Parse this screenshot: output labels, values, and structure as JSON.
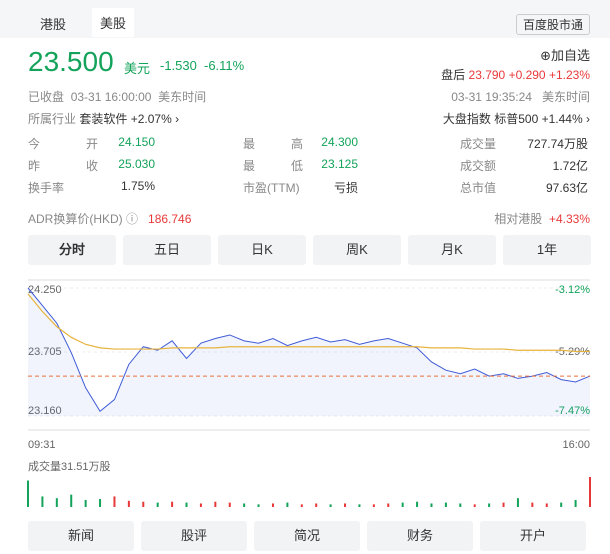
{
  "tabs": [
    "港股",
    "美股"
  ],
  "app_button": "百度股市通",
  "quote": {
    "price": "23.500",
    "currency": "美元",
    "change": "-1.530",
    "change_pct": "-6.11%",
    "watch": "加自选",
    "after_label": "盘后",
    "after_price": "23.790",
    "after_change": "+0.290",
    "after_pct": "+1.23%"
  },
  "status": {
    "state": "已收盘",
    "time": "03-31 16:00:00",
    "tz": "美东时间",
    "after_time": "03-31 19:35:24",
    "after_tz": "美东时间"
  },
  "industry": {
    "label": "所属行业",
    "name": "套装软件",
    "pct": "+2.07%"
  },
  "index": {
    "label": "大盘指数",
    "name": "标普500",
    "pct": "+1.44%"
  },
  "stats": [
    [
      [
        "今开",
        "24.150"
      ],
      [
        "最高",
        "24.300"
      ],
      [
        "成交量",
        "727.74万股"
      ]
    ],
    [
      [
        "昨收",
        "25.030"
      ],
      [
        "最低",
        "23.125"
      ],
      [
        "成交额",
        "1.72亿"
      ]
    ],
    [
      [
        "换手率",
        "1.75%"
      ],
      [
        "市盈(TTM)",
        "亏损"
      ],
      [
        "总市值",
        "97.63亿"
      ]
    ]
  ],
  "adr": {
    "label": "ADR换算价(HKD)",
    "value": "186.746",
    "rel_label": "相对港股",
    "rel_value": "+4.33%"
  },
  "periods": [
    "分时",
    "五日",
    "日K",
    "周K",
    "月K",
    "1年"
  ],
  "chart": {
    "ylim": [
      23.16,
      24.25
    ],
    "yticks": [
      {
        "value": 24.25,
        "label": "24.250"
      },
      {
        "value": 23.705,
        "label": "23.705"
      },
      {
        "value": 23.16,
        "label": "23.160"
      }
    ],
    "pct_labels": [
      "-3.12%",
      "-5.29%",
      "-7.47%"
    ],
    "xlabels": [
      "09:31",
      "16:00"
    ],
    "volume_label": "成交量31.51万股",
    "last": 23.5,
    "price": [
      24.25,
      24.1,
      23.95,
      23.7,
      23.4,
      23.2,
      23.3,
      23.6,
      23.75,
      23.72,
      23.8,
      23.65,
      23.78,
      23.82,
      23.85,
      23.8,
      23.78,
      23.82,
      23.76,
      23.8,
      23.83,
      23.79,
      23.81,
      23.77,
      23.8,
      23.82,
      23.78,
      23.74,
      23.62,
      23.55,
      23.52,
      23.56,
      23.5,
      23.52,
      23.48,
      23.5,
      23.53,
      23.47,
      23.45,
      23.5
    ],
    "average": [
      24.2,
      24.05,
      23.92,
      23.83,
      23.77,
      23.74,
      23.73,
      23.73,
      23.73,
      23.73,
      23.74,
      23.74,
      23.74,
      23.74,
      23.75,
      23.75,
      23.75,
      23.75,
      23.75,
      23.75,
      23.75,
      23.75,
      23.75,
      23.75,
      23.75,
      23.75,
      23.75,
      23.75,
      23.74,
      23.74,
      23.74,
      23.73,
      23.73,
      23.73,
      23.72,
      23.72,
      23.72,
      23.72,
      23.71,
      23.71
    ],
    "volume": [
      30,
      12,
      10,
      14,
      8,
      9,
      12,
      7,
      6,
      5,
      6,
      5,
      4,
      6,
      5,
      4,
      3,
      4,
      5,
      3,
      4,
      3,
      4,
      3,
      3,
      4,
      5,
      6,
      4,
      5,
      4,
      3,
      4,
      5,
      10,
      5,
      4,
      5,
      8,
      34
    ]
  },
  "footer": [
    "新闻",
    "股评",
    "简况",
    "财务",
    "开户"
  ]
}
